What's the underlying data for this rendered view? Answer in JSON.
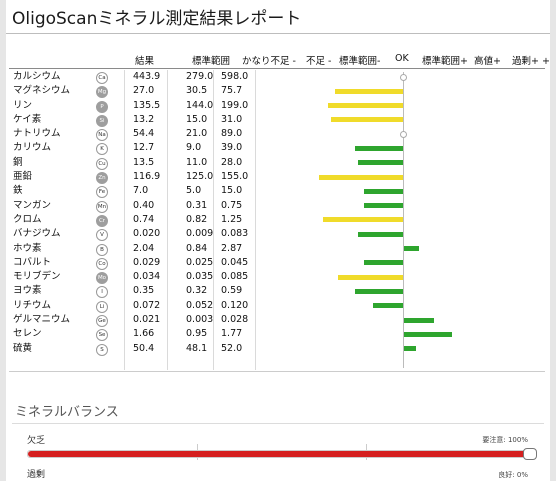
{
  "report": {
    "title": "OligoScanミネラル測定結果レポート"
  },
  "table": {
    "headers": {
      "result": "結果",
      "range": "標準範囲",
      "very_low": "かなり不足 -",
      "low": "不足 -",
      "range_minus": "標準範囲-",
      "ok": "OK",
      "range_plus": "標準範囲+",
      "high": "高値+",
      "excess": "過剰+ +"
    },
    "rows": [
      {
        "name": "カルシウム",
        "symbol": "Ca",
        "value": "443.9",
        "low": "279.0",
        "high": "598.0",
        "symbol_style": "plain"
      },
      {
        "name": "マグネシウム",
        "symbol": "Mg",
        "value": "27.0",
        "low": "30.5",
        "high": "75.7",
        "symbol_style": "grey"
      },
      {
        "name": "リン",
        "symbol": "P",
        "value": "135.5",
        "low": "144.0",
        "high": "199.0",
        "symbol_style": "grey"
      },
      {
        "name": "ケイ素",
        "symbol": "Si",
        "value": "13.2",
        "low": "15.0",
        "high": "31.0",
        "symbol_style": "grey"
      },
      {
        "name": "ナトリウム",
        "symbol": "Na",
        "value": "54.4",
        "low": "21.0",
        "high": "89.0",
        "symbol_style": "plain"
      },
      {
        "name": "カリウム",
        "symbol": "K",
        "value": "12.7",
        "low": "9.0",
        "high": "39.0",
        "symbol_style": "plain"
      },
      {
        "name": "銅",
        "symbol": "Cu",
        "value": "13.5",
        "low": "11.0",
        "high": "28.0",
        "symbol_style": "plain"
      },
      {
        "name": "亜鉛",
        "symbol": "Zn",
        "value": "116.9",
        "low": "125.0",
        "high": "155.0",
        "symbol_style": "grey"
      },
      {
        "name": "鉄",
        "symbol": "Fe",
        "value": "7.0",
        "low": "5.0",
        "high": "15.0",
        "symbol_style": "plain"
      },
      {
        "name": "マンガン",
        "symbol": "Mn",
        "value": "0.40",
        "low": "0.31",
        "high": "0.75",
        "symbol_style": "plain"
      },
      {
        "name": "クロム",
        "symbol": "Cr",
        "value": "0.74",
        "low": "0.82",
        "high": "1.25",
        "symbol_style": "grey"
      },
      {
        "name": "バナジウム",
        "symbol": "V",
        "value": "0.020",
        "low": "0.009",
        "high": "0.083",
        "symbol_style": "plain"
      },
      {
        "name": "ホウ素",
        "symbol": "B",
        "value": "2.04",
        "low": "0.84",
        "high": "2.87",
        "symbol_style": "plain"
      },
      {
        "name": "コバルト",
        "symbol": "Co",
        "value": "0.029",
        "low": "0.025",
        "high": "0.045",
        "symbol_style": "plain"
      },
      {
        "name": "モリブデン",
        "symbol": "Mo",
        "value": "0.034",
        "low": "0.035",
        "high": "0.085",
        "symbol_style": "grey"
      },
      {
        "name": "ヨウ素",
        "symbol": "I",
        "value": "0.35",
        "low": "0.32",
        "high": "0.59",
        "symbol_style": "plain"
      },
      {
        "name": "リチウム",
        "symbol": "Li",
        "value": "0.072",
        "low": "0.052",
        "high": "0.120",
        "symbol_style": "plain"
      },
      {
        "name": "ゲルマニウム",
        "symbol": "Ge",
        "value": "0.021",
        "low": "0.003",
        "high": "0.028",
        "symbol_style": "plain"
      },
      {
        "name": "セレン",
        "symbol": "Se",
        "value": "1.66",
        "low": "0.95",
        "high": "1.77",
        "symbol_style": "plain"
      },
      {
        "name": "硫黄",
        "symbol": "S",
        "value": "50.4",
        "low": "48.1",
        "high": "52.0",
        "symbol_style": "plain"
      }
    ],
    "indicators": [
      {
        "color": "none",
        "direction": "ok",
        "magnitude": 0
      },
      {
        "color": "yellow",
        "direction": "negative",
        "magnitude": 0.45
      },
      {
        "color": "yellow",
        "direction": "negative",
        "magnitude": 0.5
      },
      {
        "color": "yellow",
        "direction": "negative",
        "magnitude": 0.48
      },
      {
        "color": "none",
        "direction": "ok",
        "magnitude": 0
      },
      {
        "color": "green",
        "direction": "negative",
        "magnitude": 0.32
      },
      {
        "color": "green",
        "direction": "negative",
        "magnitude": 0.3
      },
      {
        "color": "yellow",
        "direction": "negative",
        "magnitude": 0.56
      },
      {
        "color": "green",
        "direction": "negative",
        "magnitude": 0.26
      },
      {
        "color": "green",
        "direction": "negative",
        "magnitude": 0.26
      },
      {
        "color": "yellow",
        "direction": "negative",
        "magnitude": 0.53
      },
      {
        "color": "green",
        "direction": "negative",
        "magnitude": 0.3
      },
      {
        "color": "green",
        "direction": "positive",
        "magnitude": 0.1
      },
      {
        "color": "green",
        "direction": "negative",
        "magnitude": 0.26
      },
      {
        "color": "yellow",
        "direction": "negative",
        "magnitude": 0.43
      },
      {
        "color": "green",
        "direction": "negative",
        "magnitude": 0.32
      },
      {
        "color": "green",
        "direction": "negative",
        "magnitude": 0.2
      },
      {
        "color": "green",
        "direction": "positive",
        "magnitude": 0.2
      },
      {
        "color": "green",
        "direction": "positive",
        "magnitude": 0.32
      },
      {
        "color": "green",
        "direction": "positive",
        "magnitude": 0.08
      }
    ],
    "colors": {
      "yellow": "#f0db2a",
      "green": "#2ea52e"
    }
  },
  "balance": {
    "title": "ミネラルバランス",
    "items": [
      {
        "label": "欠乏",
        "status": "要注意: 100%",
        "level": 1.0,
        "color": "#d51f1f"
      },
      {
        "label": "過剰",
        "status": "良好: 0%",
        "level": 0.0,
        "color": "#2ea52e"
      }
    ]
  }
}
